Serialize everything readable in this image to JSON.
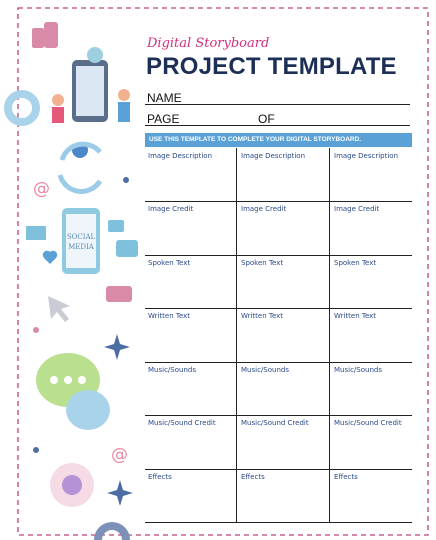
{
  "header": {
    "subtitle": "Digital Storyboard",
    "title": "PROJECT TEMPLATE"
  },
  "fields": {
    "name": "NAME",
    "page": "PAGE",
    "of": "OF"
  },
  "banner": "USE THIS TEMPLATE TO COMPLETE YOUR DIGITAL STORYBOARD.",
  "illustration": {
    "phone_text": [
      "SOCIAL",
      "MEDIA"
    ]
  },
  "table": {
    "rows": [
      [
        "Image Description",
        "Image Description",
        "Image Description"
      ],
      [
        "Image Credit",
        "Image Credit",
        "Image Credit"
      ],
      [
        "Spoken Text",
        "Spoken Text",
        "Spoken Text"
      ],
      [
        "Written Text",
        "Written Text",
        "Written Text"
      ],
      [
        "Music/Sounds",
        "Music/Sounds",
        "Music/Sounds"
      ],
      [
        "Music/Sound Credit",
        "Music/Sound Credit",
        "Music/Sound Credit"
      ],
      [
        "Effects",
        "Effects",
        "Effects"
      ]
    ]
  }
}
